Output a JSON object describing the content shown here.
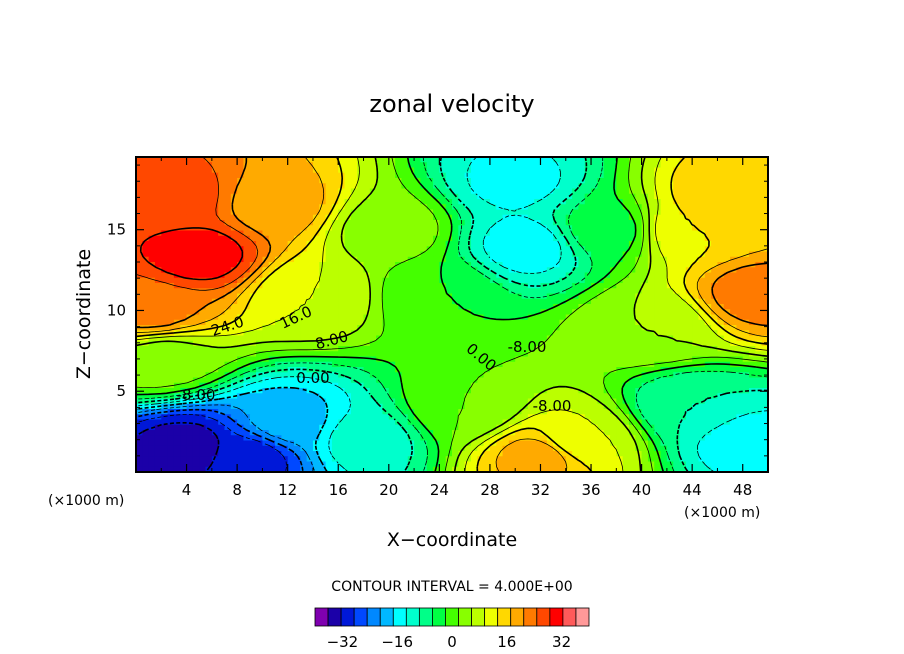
{
  "chart_data": {
    "type": "heatmap",
    "title": "zonal velocity",
    "xlabel": "X−coordinate",
    "ylabel": "Z−coordinate",
    "x_unit_label": "(×1000 m)",
    "x_unit_label_right": "(×1000 m)",
    "xlim": [
      0,
      50
    ],
    "ylim": [
      0,
      19.5
    ],
    "x_ticks": [
      4,
      8,
      12,
      16,
      20,
      24,
      28,
      32,
      36,
      40,
      44,
      48
    ],
    "y_ticks": [
      5,
      10,
      15
    ],
    "x_tick_labels": [
      "4",
      "8",
      "12",
      "16",
      "20",
      "24",
      "28",
      "32",
      "36",
      "40",
      "44",
      "48"
    ],
    "y_tick_labels": [
      "5",
      "10",
      "15"
    ],
    "contour_interval_text": "CONTOUR INTERVAL = 4.000E+00",
    "contour_labels": [
      "24.0",
      "16.0",
      "8.00",
      "0.00",
      "-8.00",
      "0.00",
      "-8.00",
      "-8.00"
    ],
    "colorbar": {
      "levels": [
        -40,
        -36,
        -32,
        -28,
        -24,
        -20,
        -16,
        -12,
        -8,
        -4,
        0,
        4,
        8,
        12,
        16,
        20,
        24,
        28,
        32,
        36,
        40
      ],
      "tick_values": [
        -32,
        -16,
        0,
        16,
        32
      ],
      "tick_labels": [
        "−32",
        "−16",
        "0",
        "16",
        "32"
      ],
      "colors": [
        "#7f00b0",
        "#1b00a8",
        "#0018d8",
        "#0048ff",
        "#0088ff",
        "#00b8ff",
        "#00ffff",
        "#00ffcc",
        "#00ff88",
        "#00ff44",
        "#44ff00",
        "#88ff00",
        "#bbff00",
        "#eeff00",
        "#ffd800",
        "#ffaa00",
        "#ff7a00",
        "#ff4800",
        "#ff0000",
        "#ff5a5a",
        "#ff9999"
      ]
    },
    "grid": false,
    "legend": "colorbar-bottom",
    "value_centers": [
      {
        "x": 5,
        "y": 13.5,
        "value": 34
      },
      {
        "x": 3,
        "y": 17,
        "value": 30
      },
      {
        "x": 11,
        "y": 16.5,
        "value": 22
      },
      {
        "x": 1,
        "y": 10,
        "value": 26
      },
      {
        "x": 14,
        "y": 11,
        "value": 12
      },
      {
        "x": 2,
        "y": 7,
        "value": 6
      },
      {
        "x": 4,
        "y": 1.5,
        "value": -34
      },
      {
        "x": 9,
        "y": 1,
        "value": -30
      },
      {
        "x": 12,
        "y": 3,
        "value": -18
      },
      {
        "x": 18,
        "y": 2,
        "value": -10
      },
      {
        "x": 20,
        "y": 15,
        "value": 6
      },
      {
        "x": 24,
        "y": 11,
        "value": 0
      },
      {
        "x": 31,
        "y": 14,
        "value": -14
      },
      {
        "x": 30,
        "y": 18,
        "value": -13
      },
      {
        "x": 37,
        "y": 15,
        "value": -2
      },
      {
        "x": 26,
        "y": 4,
        "value": 4
      },
      {
        "x": 32,
        "y": 1,
        "value": 22
      },
      {
        "x": 35,
        "y": 2,
        "value": 12
      },
      {
        "x": 41,
        "y": 9,
        "value": 8
      },
      {
        "x": 44,
        "y": 15,
        "value": 16
      },
      {
        "x": 49,
        "y": 11,
        "value": 26
      },
      {
        "x": 47,
        "y": 17,
        "value": 20
      },
      {
        "x": 48,
        "y": 2,
        "value": -14
      },
      {
        "x": 44,
        "y": 4,
        "value": -8
      }
    ]
  }
}
